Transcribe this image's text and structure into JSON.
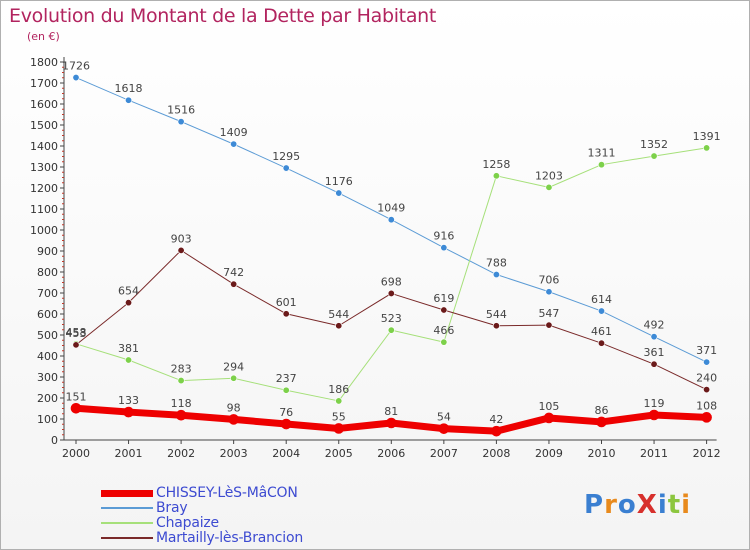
{
  "header": {
    "title": "Evolution du Montant de la Dette par Habitant",
    "unit": "(en €)"
  },
  "logo": {
    "text": "ProXiti",
    "colors": [
      "#3a7fd1",
      "#e88a1d",
      "#3a7fd1",
      "#d7302c",
      "#3a7fd1",
      "#8cc63f",
      "#e88a1d"
    ]
  },
  "chart_data": {
    "type": "line",
    "x": [
      "2000",
      "2001",
      "2002",
      "2003",
      "2004",
      "2005",
      "2006",
      "2007",
      "2008",
      "2009",
      "2010",
      "2011",
      "2012"
    ],
    "ylim": [
      0,
      1800
    ],
    "yticks": [
      0,
      100,
      200,
      300,
      400,
      500,
      600,
      700,
      800,
      900,
      1000,
      1100,
      1200,
      1300,
      1400,
      1500,
      1600,
      1700,
      1800
    ],
    "grid": false,
    "legend_position": "bottom-left",
    "series": [
      {
        "name": "Bray",
        "color": "#5b9bd5",
        "point_color": "#3d8ad6",
        "width": 1,
        "values": [
          1726,
          1618,
          1516,
          1409,
          1295,
          1176,
          1049,
          916,
          788,
          706,
          614,
          492,
          371
        ]
      },
      {
        "name": "Chapaize",
        "color": "#a6e07a",
        "point_color": "#7dd14a",
        "width": 1,
        "values": [
          458,
          381,
          283,
          294,
          237,
          186,
          523,
          466,
          1258,
          1203,
          1311,
          1352,
          1391
        ]
      },
      {
        "name": "Martailly-lès-Brancion",
        "color": "#7a2a2a",
        "point_color": "#6b1a1a",
        "width": 1,
        "values": [
          453,
          654,
          903,
          742,
          601,
          544,
          698,
          619,
          544,
          547,
          461,
          361,
          240
        ]
      },
      {
        "name": "CHISSEY-LèS-MâCON",
        "color": "#ee0000",
        "point_color": "#ee0000",
        "width": 7,
        "values": [
          151,
          133,
          118,
          98,
          76,
          55,
          81,
          54,
          42,
          105,
          86,
          119,
          108
        ]
      }
    ],
    "legend_order": [
      "CHISSEY-LèS-MâCON",
      "Bray",
      "Chapaize",
      "Martailly-lès-Brancion"
    ]
  }
}
